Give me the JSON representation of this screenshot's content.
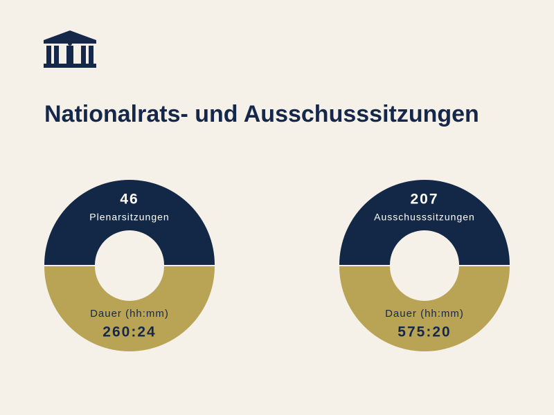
{
  "title": "Nationalrats- und Ausschusssitzungen",
  "panels": [
    {
      "count": 46,
      "label": "Plenarsitzungen",
      "duration_label": "Dauer (hh:mm)",
      "duration": "260:24"
    },
    {
      "count": 207,
      "label": "Ausschusssitzungen",
      "duration_label": "Dauer (hh:mm)",
      "duration": "575:20"
    }
  ]
}
